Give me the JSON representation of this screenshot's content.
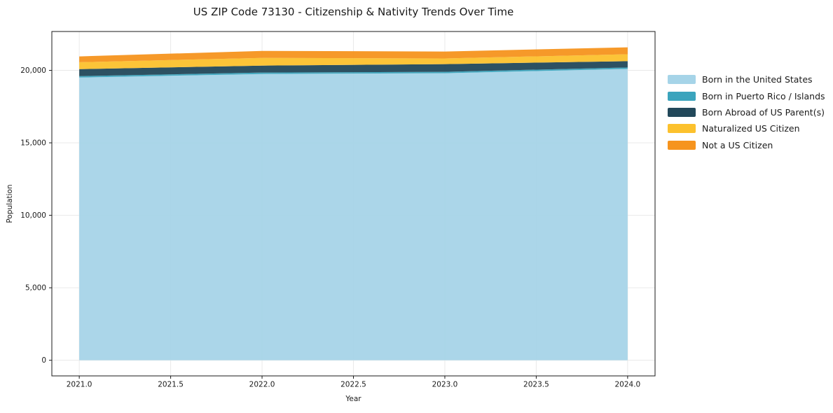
{
  "chart_data": {
    "type": "area",
    "stacked": true,
    "title": "US ZIP Code 73130 - Citizenship & Nativity Trends Over Time",
    "xlabel": "Year",
    "ylabel": "Population",
    "x": [
      2021,
      2022,
      2023,
      2024
    ],
    "series": [
      {
        "name": "Born in the United States",
        "color": "#a6d4e8",
        "values": [
          19500,
          19750,
          19800,
          20100
        ]
      },
      {
        "name": "Born in Puerto Rico / Islands",
        "color": "#3ba4bd",
        "values": [
          100,
          100,
          100,
          100
        ]
      },
      {
        "name": "Born Abroad of US Parent(s)",
        "color": "#22485a",
        "values": [
          480,
          480,
          530,
          430
        ]
      },
      {
        "name": "Naturalized US Citizen",
        "color": "#fcc12d",
        "values": [
          480,
          530,
          390,
          480
        ]
      },
      {
        "name": "Not a US Citizen",
        "color": "#f6941e",
        "values": [
          400,
          480,
          480,
          480
        ]
      }
    ],
    "xtick_labels": [
      "2021.0",
      "2021.5",
      "2022.0",
      "2022.5",
      "2023.0",
      "2023.5",
      "2024.0"
    ],
    "xticks": [
      2021.0,
      2021.5,
      2022.0,
      2022.5,
      2023.0,
      2023.5,
      2024.0
    ],
    "ytick_labels": [
      "0",
      "5,000",
      "10,000",
      "15,000",
      "20,000"
    ],
    "yticks": [
      0,
      5000,
      10000,
      15000,
      20000
    ],
    "xlim": [
      2020.85,
      2024.15
    ],
    "ylim": [
      -1080,
      22680
    ],
    "grid": true,
    "grid_color": "#e9e9e9",
    "spine_color": "#1a1a1a",
    "legend_position": "right",
    "fill_opacity": 0.95
  }
}
